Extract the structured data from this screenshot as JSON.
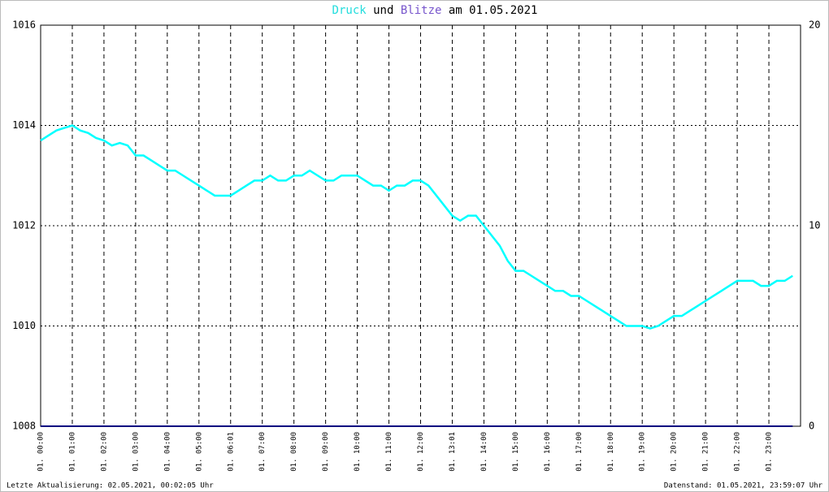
{
  "chart_data": {
    "type": "line",
    "title_connector": "und",
    "title_suffix": "am 01.05.2021",
    "categories": [
      "01. 00:00",
      null,
      null,
      null,
      "01. 01:00",
      null,
      null,
      null,
      "01. 02:00",
      null,
      null,
      null,
      "01. 03:00",
      null,
      null,
      null,
      "01. 04:00",
      null,
      null,
      null,
      "01. 05:00",
      null,
      null,
      null,
      "01. 06:01",
      null,
      null,
      null,
      "01. 07:00",
      null,
      null,
      null,
      "01. 08:00",
      null,
      null,
      null,
      "01. 09:00",
      null,
      null,
      null,
      "01. 10:00",
      null,
      null,
      null,
      "01. 11:00",
      null,
      null,
      null,
      "01. 12:00",
      null,
      null,
      null,
      "01. 13:01",
      null,
      null,
      null,
      "01. 14:00",
      null,
      null,
      null,
      "01. 15:00",
      null,
      null,
      null,
      "01. 16:00",
      null,
      null,
      null,
      "01. 17:00",
      null,
      null,
      null,
      "01. 18:00",
      null,
      null,
      null,
      "01. 19:00",
      null,
      null,
      null,
      "01. 20:00",
      null,
      null,
      null,
      "01. 21:00",
      null,
      null,
      null,
      "01. 22:00",
      null,
      null,
      null,
      "01. 23:00",
      null,
      null,
      null
    ],
    "series": [
      {
        "name": "Druck",
        "color": "#00ffff",
        "axis": "y",
        "values": [
          1013.7,
          1013.8,
          1013.9,
          1013.95,
          1014.0,
          1013.9,
          1013.85,
          1013.75,
          1013.7,
          1013.6,
          1013.65,
          1013.6,
          1013.4,
          1013.4,
          1013.3,
          1013.2,
          1013.1,
          1013.1,
          1013.0,
          1012.9,
          1012.8,
          1012.7,
          1012.6,
          1012.6,
          1012.6,
          1012.7,
          1012.8,
          1012.9,
          1012.9,
          1013.0,
          1012.9,
          1012.9,
          1013.0,
          1013.0,
          1013.1,
          1013.0,
          1012.9,
          1012.9,
          1013.0,
          1013.0,
          1013.0,
          1012.9,
          1012.8,
          1012.8,
          1012.7,
          1012.8,
          1012.8,
          1012.9,
          1012.9,
          1012.8,
          1012.6,
          1012.4,
          1012.2,
          1012.1,
          1012.2,
          1012.2,
          1012.0,
          1011.8,
          1011.6,
          1011.3,
          1011.1,
          1011.1,
          1011.0,
          1010.9,
          1010.8,
          1010.7,
          1010.7,
          1010.6,
          1010.6,
          1010.5,
          1010.4,
          1010.3,
          1010.2,
          1010.1,
          1010.0,
          1010.0,
          1010.0,
          1009.95,
          1010.0,
          1010.1,
          1010.2,
          1010.2,
          1010.3,
          1010.4,
          1010.5,
          1010.6,
          1010.7,
          1010.8,
          1010.9,
          1010.9,
          1010.9,
          1010.8,
          1010.8,
          1010.9,
          1010.9,
          1011.0
        ]
      },
      {
        "name": "Blitze",
        "color": "#000080",
        "axis": "y2",
        "values": [
          0,
          0,
          0,
          0,
          0,
          0,
          0,
          0,
          0,
          0,
          0,
          0,
          0,
          0,
          0,
          0,
          0,
          0,
          0,
          0,
          0,
          0,
          0,
          0,
          0,
          0,
          0,
          0,
          0,
          0,
          0,
          0,
          0,
          0,
          0,
          0,
          0,
          0,
          0,
          0,
          0,
          0,
          0,
          0,
          0,
          0,
          0,
          0,
          0,
          0,
          0,
          0,
          0,
          0,
          0,
          0,
          0,
          0,
          0,
          0,
          0,
          0,
          0,
          0,
          0,
          0,
          0,
          0,
          0,
          0,
          0,
          0,
          0,
          0,
          0,
          0,
          0,
          0,
          0,
          0,
          0,
          0,
          0,
          0,
          0,
          0,
          0,
          0,
          0,
          0,
          0,
          0,
          0,
          0,
          0,
          0
        ]
      }
    ],
    "title_color_connector": "#000000",
    "ylim": [
      1008,
      1016
    ],
    "yticks": [
      1008,
      1010,
      1012,
      1014,
      1016
    ],
    "y2lim": [
      0,
      20
    ],
    "y2ticks": [
      0,
      10,
      20
    ],
    "grid": true,
    "footer_left": "Letzte Aktualisierung: 02.05.2021, 00:02:05 Uhr",
    "footer_right": "Datenstand: 01.05.2021, 23:59:07 Uhr"
  }
}
